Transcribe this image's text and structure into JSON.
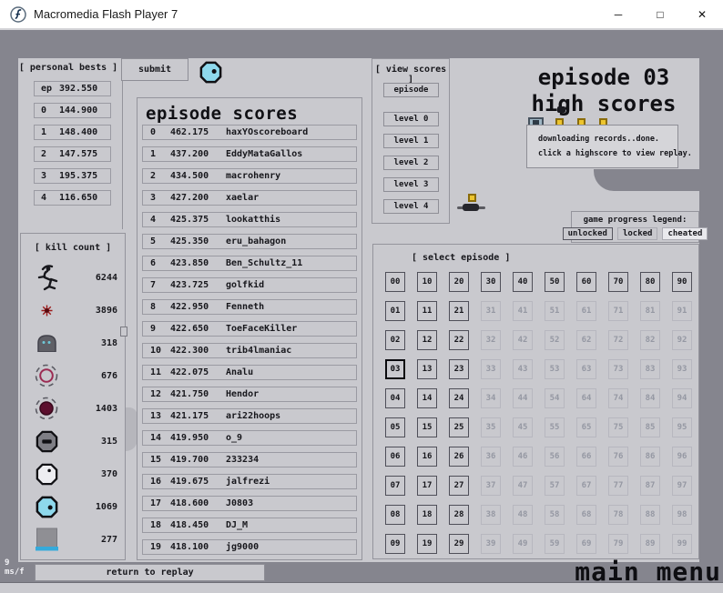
{
  "window": {
    "title": "Macromedia Flash Player 7",
    "controls": {
      "minimize": "─",
      "maximize": "□",
      "close": "✕"
    }
  },
  "personal_bests": {
    "header": "[ personal bests ]",
    "rows": [
      {
        "label": "ep",
        "value": "392.550"
      },
      {
        "label": "0",
        "value": "144.900"
      },
      {
        "label": "1",
        "value": "148.400"
      },
      {
        "label": "2",
        "value": "147.575"
      },
      {
        "label": "3",
        "value": "195.375"
      },
      {
        "label": "4",
        "value": "116.650"
      }
    ]
  },
  "submit_label": "submit",
  "kill_count": {
    "header": "[ kill count ]",
    "rows": [
      {
        "icon": "ninja-icon",
        "value": "6244"
      },
      {
        "icon": "mine-icon",
        "value": "3896"
      },
      {
        "icon": "turret-icon",
        "value": "318"
      },
      {
        "icon": "ring-drone-icon",
        "value": "676"
      },
      {
        "icon": "drone-icon",
        "value": "1403"
      },
      {
        "icon": "octagon-dark-icon",
        "value": "315"
      },
      {
        "icon": "octagon-white-icon",
        "value": "370"
      },
      {
        "icon": "octagon-blue-icon",
        "value": "1069"
      },
      {
        "icon": "block-icon",
        "value": "277"
      }
    ]
  },
  "episode_scores": {
    "title": "episode scores",
    "rows": [
      {
        "rank": "0",
        "score": "462.175",
        "name": "haxYOscoreboard"
      },
      {
        "rank": "1",
        "score": "437.200",
        "name": "EddyMataGallos"
      },
      {
        "rank": "2",
        "score": "434.500",
        "name": "macrohenry"
      },
      {
        "rank": "3",
        "score": "427.200",
        "name": "xaelar"
      },
      {
        "rank": "4",
        "score": "425.375",
        "name": "lookatthis"
      },
      {
        "rank": "5",
        "score": "425.350",
        "name": "eru_bahagon"
      },
      {
        "rank": "6",
        "score": "423.850",
        "name": "Ben_Schultz_11"
      },
      {
        "rank": "7",
        "score": "423.725",
        "name": "golfkid"
      },
      {
        "rank": "8",
        "score": "422.950",
        "name": "Fenneth"
      },
      {
        "rank": "9",
        "score": "422.650",
        "name": "ToeFaceKiller"
      },
      {
        "rank": "10",
        "score": "422.300",
        "name": "trib4lmaniac"
      },
      {
        "rank": "11",
        "score": "422.075",
        "name": "Analu"
      },
      {
        "rank": "12",
        "score": "421.750",
        "name": "Hendor"
      },
      {
        "rank": "13",
        "score": "421.175",
        "name": "ari22hoops"
      },
      {
        "rank": "14",
        "score": "419.950",
        "name": "o_9"
      },
      {
        "rank": "15",
        "score": "419.700",
        "name": "233234"
      },
      {
        "rank": "16",
        "score": "419.675",
        "name": "jalfrezi"
      },
      {
        "rank": "17",
        "score": "418.600",
        "name": "J0803"
      },
      {
        "rank": "18",
        "score": "418.450",
        "name": "DJ_M"
      },
      {
        "rank": "19",
        "score": "418.100",
        "name": "jg9000"
      }
    ]
  },
  "view_scores": {
    "header": "[ view scores ]",
    "buttons": [
      "episode",
      "level 0",
      "level 1",
      "level 2",
      "level 3",
      "level 4"
    ]
  },
  "high_scores_title": {
    "line1": "episode 03",
    "line2": "high scores"
  },
  "tooltip": {
    "line1": "downloading records..done.",
    "line2": "click a highscore to view replay."
  },
  "legend": {
    "header": "game progress legend:",
    "items": [
      "unlocked",
      "locked",
      "cheated"
    ]
  },
  "select_episode": {
    "header": "[ select episode ]",
    "cells": [
      [
        "00",
        "u"
      ],
      [
        "10",
        "u"
      ],
      [
        "20",
        "u"
      ],
      [
        "30",
        "u"
      ],
      [
        "40",
        "u"
      ],
      [
        "50",
        "u"
      ],
      [
        "60",
        "u"
      ],
      [
        "70",
        "u"
      ],
      [
        "80",
        "u"
      ],
      [
        "90",
        "u"
      ],
      [
        "01",
        "u"
      ],
      [
        "11",
        "u"
      ],
      [
        "21",
        "u"
      ],
      [
        "31",
        "l"
      ],
      [
        "41",
        "l"
      ],
      [
        "51",
        "l"
      ],
      [
        "61",
        "l"
      ],
      [
        "71",
        "l"
      ],
      [
        "81",
        "l"
      ],
      [
        "91",
        "l"
      ],
      [
        "02",
        "u"
      ],
      [
        "12",
        "u"
      ],
      [
        "22",
        "u"
      ],
      [
        "32",
        "l"
      ],
      [
        "42",
        "l"
      ],
      [
        "52",
        "l"
      ],
      [
        "62",
        "l"
      ],
      [
        "72",
        "l"
      ],
      [
        "82",
        "l"
      ],
      [
        "92",
        "l"
      ],
      [
        "03",
        "s"
      ],
      [
        "13",
        "u"
      ],
      [
        "23",
        "u"
      ],
      [
        "33",
        "l"
      ],
      [
        "43",
        "l"
      ],
      [
        "53",
        "l"
      ],
      [
        "63",
        "l"
      ],
      [
        "73",
        "l"
      ],
      [
        "83",
        "l"
      ],
      [
        "93",
        "l"
      ],
      [
        "04",
        "u"
      ],
      [
        "14",
        "u"
      ],
      [
        "24",
        "u"
      ],
      [
        "34",
        "l"
      ],
      [
        "44",
        "l"
      ],
      [
        "54",
        "l"
      ],
      [
        "64",
        "l"
      ],
      [
        "74",
        "l"
      ],
      [
        "84",
        "l"
      ],
      [
        "94",
        "l"
      ],
      [
        "05",
        "u"
      ],
      [
        "15",
        "u"
      ],
      [
        "25",
        "u"
      ],
      [
        "35",
        "l"
      ],
      [
        "45",
        "l"
      ],
      [
        "55",
        "l"
      ],
      [
        "65",
        "l"
      ],
      [
        "75",
        "l"
      ],
      [
        "85",
        "l"
      ],
      [
        "95",
        "l"
      ],
      [
        "06",
        "u"
      ],
      [
        "16",
        "u"
      ],
      [
        "26",
        "u"
      ],
      [
        "36",
        "l"
      ],
      [
        "46",
        "l"
      ],
      [
        "56",
        "l"
      ],
      [
        "66",
        "l"
      ],
      [
        "76",
        "l"
      ],
      [
        "86",
        "l"
      ],
      [
        "96",
        "l"
      ],
      [
        "07",
        "u"
      ],
      [
        "17",
        "u"
      ],
      [
        "27",
        "u"
      ],
      [
        "37",
        "l"
      ],
      [
        "47",
        "l"
      ],
      [
        "57",
        "l"
      ],
      [
        "67",
        "l"
      ],
      [
        "77",
        "l"
      ],
      [
        "87",
        "l"
      ],
      [
        "97",
        "l"
      ],
      [
        "08",
        "u"
      ],
      [
        "18",
        "u"
      ],
      [
        "28",
        "u"
      ],
      [
        "38",
        "l"
      ],
      [
        "48",
        "l"
      ],
      [
        "58",
        "l"
      ],
      [
        "68",
        "l"
      ],
      [
        "78",
        "l"
      ],
      [
        "88",
        "l"
      ],
      [
        "98",
        "l"
      ],
      [
        "09",
        "u"
      ],
      [
        "19",
        "u"
      ],
      [
        "29",
        "u"
      ],
      [
        "39",
        "l"
      ],
      [
        "49",
        "l"
      ],
      [
        "59",
        "l"
      ],
      [
        "69",
        "l"
      ],
      [
        "79",
        "l"
      ],
      [
        "89",
        "l"
      ],
      [
        "99",
        "l"
      ]
    ]
  },
  "footer": {
    "fps_value": "9",
    "fps_unit": "ms/f",
    "return_label": "return to replay",
    "main_menu_label": "main menu"
  }
}
